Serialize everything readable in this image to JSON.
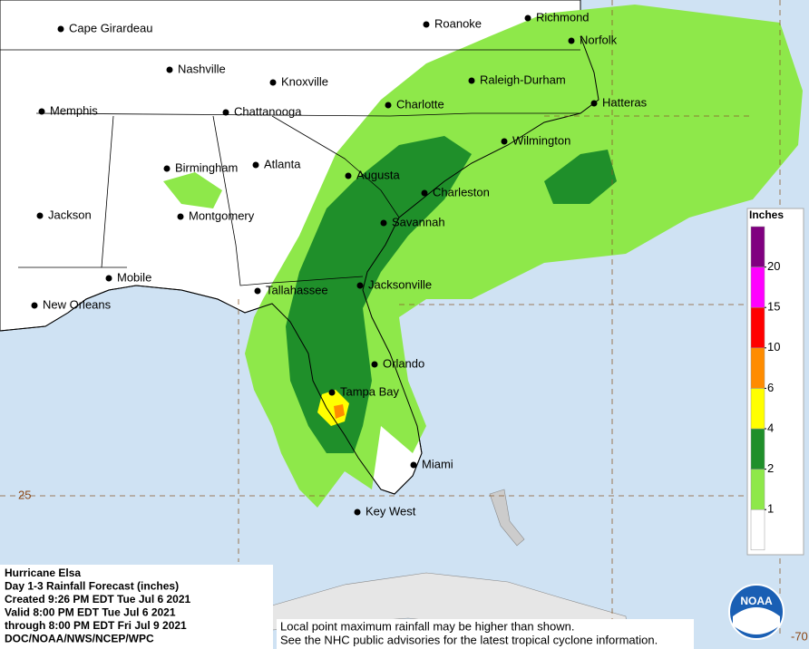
{
  "map": {
    "cities": [
      "Cape Girardeau",
      "Roanoke",
      "Richmond",
      "Norfolk",
      "Nashville",
      "Knoxville",
      "Raleigh-Durham",
      "Memphis",
      "Chattanooga",
      "Charlotte",
      "Hatteras",
      "Wilmington",
      "Birmingham",
      "Atlanta",
      "Augusta",
      "Charleston",
      "Jackson",
      "Montgomery",
      "Savannah",
      "Mobile",
      "Tallahassee",
      "Jacksonville",
      "New Orleans",
      "Orlando",
      "Tampa Bay",
      "Miami",
      "Key West"
    ],
    "grid_labels": {
      "lat": "25",
      "lon": "-70"
    },
    "legend": {
      "title": "Inches",
      "ticks": [
        1,
        2,
        4,
        6,
        10,
        15,
        20
      ],
      "colors": [
        "#ffffff",
        "#8ee84a",
        "#1f8f2a",
        "#ffff00",
        "#ff8c00",
        "#ff0000",
        "#ff00ff",
        "#800080"
      ]
    },
    "info": [
      "Hurricane Elsa",
      "Day 1-3 Rainfall Forecast (inches)",
      "Created 9:26 PM EDT Tue Jul 6 2021",
      "Valid 8:00 PM EDT Tue Jul 6 2021",
      "through 8:00 PM EDT Fri Jul 9 2021",
      "DOC/NOAA/NWS/NCEP/WPC"
    ],
    "note": [
      "Local point maximum rainfall may be higher than shown.",
      "See the NHC public advisories for the latest tropical cyclone information."
    ],
    "logo": "NOAA"
  }
}
